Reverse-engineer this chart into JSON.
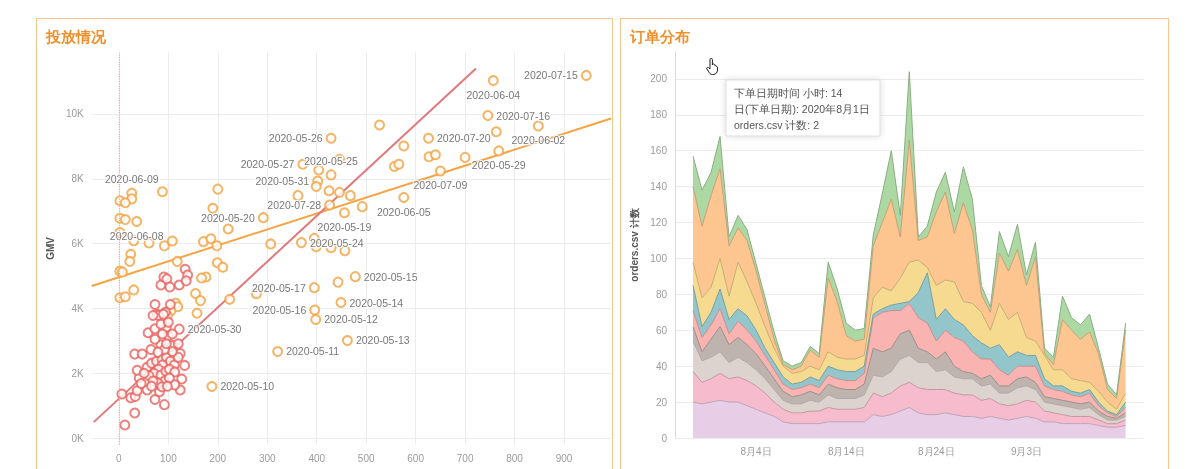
{
  "chart_data": [
    {
      "type": "scatter",
      "title": "投放情况",
      "ylabel": "GMV",
      "xlim": [
        -55,
        995
      ],
      "xticks": [
        0,
        100,
        200,
        300,
        400,
        500,
        600,
        700,
        800,
        900
      ],
      "ylim": [
        -200,
        11900
      ],
      "yticks": [
        {
          "value": 0,
          "label": "0K"
        },
        {
          "value": 2000,
          "label": "2K"
        },
        {
          "value": 4000,
          "label": "4K"
        },
        {
          "value": 6000,
          "label": "6K"
        },
        {
          "value": 8000,
          "label": "8K"
        },
        {
          "value": 10000,
          "label": "10K"
        }
      ],
      "grid": true,
      "ref_lines": [
        {
          "axis": "x",
          "value": 0,
          "color": "#f4a6a6",
          "line_style": "dotted"
        }
      ],
      "series": [
        {
          "color": "#f2a03d",
          "marker": "circle",
          "x": [
            945,
            757,
            746,
            626,
            848,
            763,
            429,
            527,
            372,
            768,
            650,
            402,
            429,
            576,
            557,
            566,
            627,
            640,
            700,
            446,
            404,
            399,
            425,
            446,
            468,
            362,
            576,
            426,
            456,
            492,
            292,
            395,
            369,
            399,
            429,
            457,
            478,
            443,
            449,
            395,
            396,
            398,
            462,
            321,
            188,
            26,
            26,
            2,
            13,
            2,
            13,
            36,
            2,
            88,
            200,
            190,
            221,
            307,
            30,
            61,
            92,
            108,
            171,
            186,
            198,
            24,
            22,
            2,
            7,
            118,
            176,
            167,
            199,
            210,
            30,
            2,
            13,
            155,
            165,
            158,
            278,
            224,
            115,
            119,
            105,
            98
          ],
          "values": [
            11190,
            11030,
            9950,
            9250,
            9630,
            9450,
            9250,
            9660,
            8450,
            8860,
            8240,
            7930,
            8120,
            9010,
            8380,
            8450,
            8680,
            8740,
            8660,
            8600,
            8270,
            7760,
            7630,
            7580,
            7480,
            7480,
            7420,
            7190,
            6950,
            7140,
            6800,
            6160,
            6030,
            5900,
            5870,
            5780,
            4980,
            4810,
            4180,
            4640,
            3950,
            3660,
            3010,
            2670,
            1590,
            7550,
            7380,
            7320,
            7260,
            6780,
            6740,
            6680,
            6340,
            7600,
            7680,
            7090,
            6450,
            5990,
            6090,
            6020,
            5930,
            6080,
            6060,
            6150,
            5930,
            5670,
            5450,
            5150,
            5120,
            5450,
            4970,
            4940,
            5410,
            5270,
            4570,
            4330,
            4360,
            4460,
            4240,
            3850,
            4450,
            4280,
            4160,
            4050,
            3930,
            3770
          ],
          "value_labels": [
            "2020-07-15",
            "2020-06-04",
            "2020-07-16",
            "2020-07-20",
            "2020-06-02",
            null,
            "2020-05-26",
            null,
            "2020-05-27",
            "2020-05-29",
            "2020-07-09",
            "2020-05-31",
            "2020-05-25",
            null,
            null,
            null,
            null,
            null,
            null,
            null,
            null,
            null,
            null,
            null,
            null,
            null,
            "2020-06-05",
            "2020-07-28",
            "2020-05-19",
            null,
            "2020-05-20",
            null,
            "2020-05-24",
            null,
            null,
            null,
            "2020-05-15",
            null,
            "2020-05-14",
            "2020-05-17",
            "2020-05-16",
            "2020-05-12",
            "2020-05-13",
            "2020-05-11",
            "2020-05-10",
            "2020-06-09",
            null,
            null,
            null,
            null,
            null,
            "2020-06-08",
            null,
            null,
            null,
            null,
            null,
            null,
            null,
            null,
            null,
            null,
            null,
            null,
            null,
            null,
            null,
            null,
            null,
            null,
            null,
            null,
            null,
            null,
            null,
            null,
            null,
            null,
            null,
            null,
            null,
            null,
            null,
            null,
            null,
            null
          ]
        },
        {
          "color": "#e8625e",
          "marker": "circle",
          "x": [
            12,
            32,
            6,
            24,
            33,
            37,
            32,
            47,
            59,
            73,
            73,
            77,
            85,
            91,
            97,
            103,
            134,
            139,
            122,
            136,
            104,
            94,
            80,
            69,
            96,
            100,
            122,
            85,
            73,
            65,
            108,
            124,
            133,
            127,
            124,
            113,
            92,
            73,
            82,
            57,
            41,
            37,
            45,
            57,
            66,
            76,
            87,
            96,
            104,
            112,
            120,
            88,
            80,
            71,
            61,
            51,
            85,
            95,
            102,
            113,
            92,
            79,
            69,
            102,
            87,
            98,
            66,
            108,
            92,
            79,
            120,
            96,
            88,
            108,
            85,
            100,
            90
          ],
          "values": [
            400,
            770,
            1360,
            1240,
            1280,
            1460,
            2590,
            2590,
            3250,
            3370,
            4120,
            3820,
            4720,
            4970,
            4910,
            4660,
            5210,
            5030,
            4720,
            4850,
            4120,
            3880,
            3780,
            3780,
            3420,
            3150,
            3360,
            2880,
            3050,
            2730,
            2850,
            2610,
            2240,
            1820,
            1480,
            1640,
            1030,
            1190,
            1430,
            1480,
            1850,
            2090,
            1680,
            2180,
            2310,
            2370,
            2430,
            2490,
            2370,
            2250,
            2490,
            2250,
            2120,
            2000,
            1920,
            2000,
            1940,
            2060,
            2120,
            2040,
            1760,
            1700,
            1760,
            1850,
            1580,
            1600,
            1600,
            2670,
            2730,
            2650,
            2910,
            2910,
            3210,
            3210,
            3510,
            3570,
            3820
          ],
          "value_labels": [
            null,
            null,
            null,
            null,
            null,
            null,
            null,
            null,
            null,
            null,
            null,
            null,
            null,
            null,
            null,
            null,
            null,
            null,
            null,
            null,
            null,
            null,
            null,
            null,
            null,
            null,
            "2020-05-30",
            null,
            null,
            null,
            null,
            null,
            null,
            null,
            null,
            null,
            null,
            null,
            null,
            null,
            null,
            null,
            null,
            null,
            null,
            null,
            null,
            null,
            null,
            null,
            null,
            null,
            null,
            null,
            null,
            null,
            null,
            null,
            null,
            null,
            null,
            null,
            null,
            null,
            null,
            null,
            null,
            null,
            null,
            null,
            null,
            null,
            null,
            null,
            null,
            null,
            null
          ]
        },
        {
          "type": "line",
          "color": "#f4a443",
          "x": [
            -55,
            995
          ],
          "values": [
            4690,
            9860
          ]
        },
        {
          "type": "line",
          "color": "#e0787c",
          "x": [
            -51,
            722
          ],
          "values": [
            490,
            11400
          ]
        }
      ]
    },
    {
      "type": "area",
      "title": "订单分布",
      "ylabel": "orders.csv 计数",
      "stacked": true,
      "x": [
        "2020-07-28",
        "2020-07-29",
        "2020-07-30",
        "2020-07-31",
        "2020-08-01",
        "2020-08-02",
        "2020-08-03",
        "2020-08-04",
        "2020-08-05",
        "2020-08-06",
        "2020-08-07",
        "2020-08-08",
        "2020-08-09",
        "2020-08-10",
        "2020-08-11",
        "2020-08-12",
        "2020-08-13",
        "2020-08-14",
        "2020-08-15",
        "2020-08-16",
        "2020-08-17",
        "2020-08-18",
        "2020-08-19",
        "2020-08-20",
        "2020-08-21",
        "2020-08-22",
        "2020-08-23",
        "2020-08-24",
        "2020-08-25",
        "2020-08-26",
        "2020-08-27",
        "2020-08-28",
        "2020-08-29",
        "2020-08-30",
        "2020-08-31",
        "2020-09-01",
        "2020-09-02",
        "2020-09-03",
        "2020-09-04",
        "2020-09-05",
        "2020-09-06",
        "2020-09-07",
        "2020-09-08",
        "2020-09-09",
        "2020-09-10",
        "2020-09-11",
        "2020-09-12",
        "2020-09-13",
        "2020-09-14"
      ],
      "xlim": [
        "2020-07-26",
        "2020-09-16"
      ],
      "xticks": [
        {
          "value": "2020-08-04",
          "label": "8月4日"
        },
        {
          "value": "2020-08-14",
          "label": "8月14日"
        },
        {
          "value": "2020-08-24",
          "label": "8月24日"
        },
        {
          "value": "2020-09-03",
          "label": "9月3日"
        }
      ],
      "ylim": [
        0,
        215
      ],
      "yticks": [
        0,
        20,
        40,
        60,
        80,
        100,
        120,
        140,
        160,
        180,
        200
      ],
      "grid": "y",
      "annotations": [
        "下单日期时间 小时: 14",
        "日(下单日期): 2020年8月1日",
        "orders.csv 计数: 2"
      ],
      "series": [
        {
          "color": "#e8cde6",
          "values": [
            20,
            19,
            20,
            21,
            20,
            20,
            18,
            16,
            14,
            12,
            9,
            8,
            8,
            8,
            8,
            9,
            9,
            9,
            9,
            9,
            13,
            12,
            13,
            15,
            17,
            14,
            13,
            13,
            14,
            13,
            12,
            12,
            11,
            12,
            11,
            10,
            11,
            12,
            11,
            9,
            9,
            8,
            8,
            8,
            8,
            7,
            6,
            6,
            7
          ]
        },
        {
          "color": "#f6bccd",
          "values": [
            17,
            12,
            13,
            15,
            13,
            14,
            14,
            13,
            11,
            8,
            7,
            6,
            6,
            7,
            7,
            8,
            7,
            7,
            7,
            8,
            12,
            11,
            12,
            14,
            14,
            14,
            14,
            14,
            13,
            12,
            12,
            12,
            10,
            10,
            8,
            8,
            8,
            9,
            9,
            6,
            5,
            5,
            4,
            4,
            4,
            3,
            2,
            2,
            3
          ]
        },
        {
          "color": "#dcd3cf",
          "values": [
            17,
            12,
            12,
            12,
            9,
            11,
            10,
            9,
            8,
            7,
            5,
            5,
            5,
            6,
            5,
            7,
            6,
            6,
            6,
            7,
            10,
            11,
            12,
            15,
            15,
            14,
            15,
            10,
            11,
            9,
            9,
            9,
            8,
            8,
            6,
            7,
            9,
            8,
            7,
            5,
            5,
            5,
            5,
            4,
            5,
            3,
            2,
            2,
            2
          ]
        },
        {
          "color": "#bfb3ae",
          "values": [
            8,
            5,
            10,
            14,
            10,
            11,
            10,
            9,
            7,
            6,
            5,
            4,
            5,
            5,
            4,
            6,
            6,
            5,
            5,
            6,
            15,
            14,
            13,
            14,
            14,
            8,
            6,
            7,
            10,
            6,
            4,
            3,
            4,
            5,
            4,
            4,
            5,
            5,
            4,
            3,
            3,
            3,
            3,
            3,
            3,
            2,
            2,
            1,
            2
          ]
        },
        {
          "color": "#f9b3b0",
          "values": [
            9,
            8,
            8,
            10,
            6,
            9,
            8,
            7,
            6,
            5,
            4,
            4,
            4,
            4,
            4,
            5,
            5,
            5,
            5,
            6,
            17,
            22,
            21,
            13,
            15,
            17,
            16,
            10,
            12,
            16,
            17,
            12,
            11,
            9,
            9,
            6,
            7,
            6,
            9,
            6,
            5,
            5,
            4,
            4,
            5,
            3,
            2,
            1,
            3
          ]
        },
        {
          "color": "#93c6cb",
          "values": [
            14,
            6,
            7,
            11,
            8,
            7,
            8,
            6,
            4,
            4,
            4,
            3,
            3,
            4,
            4,
            5,
            5,
            5,
            5,
            4,
            2,
            2,
            3,
            4,
            1,
            14,
            28,
            12,
            12,
            10,
            9,
            9,
            9,
            6,
            14,
            10,
            8,
            6,
            6,
            4,
            2,
            3,
            2,
            2,
            2,
            2,
            1,
            1,
            3
          ]
        },
        {
          "color": "#f6da8f",
          "values": [
            13,
            16,
            14,
            17,
            13,
            26,
            19,
            15,
            12,
            8,
            6,
            6,
            6,
            6,
            6,
            8,
            7,
            7,
            7,
            6,
            9,
            12,
            8,
            14,
            22,
            18,
            3,
            19,
            16,
            21,
            13,
            18,
            17,
            10,
            23,
            21,
            22,
            10,
            8,
            13,
            9,
            9,
            7,
            7,
            4,
            6,
            5,
            3,
            5
          ]
        },
        {
          "color": "#fdc690",
          "values": [
            42,
            40,
            51,
            50,
            28,
            19,
            23,
            18,
            12,
            5,
            1,
            2,
            3,
            9,
            7,
            41,
            31,
            13,
            10,
            9,
            29,
            36,
            51,
            23,
            68,
            11,
            17,
            41,
            49,
            27,
            55,
            41,
            10,
            10,
            28,
            27,
            35,
            29,
            47,
            1,
            3,
            28,
            27,
            23,
            28,
            21,
            7,
            6,
            35
          ]
        },
        {
          "color": "#acd9a3",
          "values": [
            17,
            20,
            13,
            18,
            5,
            7,
            6,
            4,
            4,
            4,
            2,
            2,
            2,
            2,
            2,
            9,
            7,
            7,
            6,
            6,
            6,
            16,
            27,
            12,
            38,
            2,
            6,
            11,
            11,
            12,
            20,
            17,
            5,
            3,
            12,
            8,
            14,
            6,
            8,
            3,
            4,
            13,
            7,
            8,
            10,
            3,
            3,
            2,
            4
          ]
        }
      ]
    }
  ]
}
